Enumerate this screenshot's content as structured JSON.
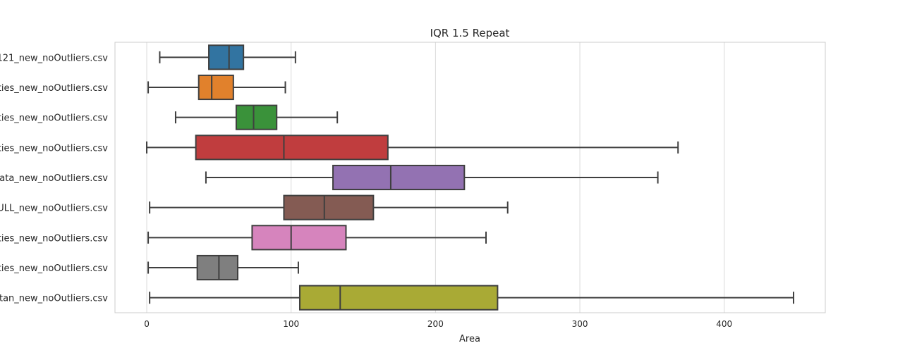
{
  "chart_data": {
    "type": "boxplot",
    "orientation": "horizontal",
    "title": "IQR 1.5 Repeat",
    "xlabel": "Area",
    "ylabel": "",
    "xlim": [
      -22,
      470
    ],
    "x_ticks": [
      0,
      100,
      200,
      300,
      400
    ],
    "grid": "vertical",
    "categories": [
      "121_new_noOutliers.csv",
      "rties_new_noOutliers.csv",
      "rties_new_noOutliers.csv",
      "rties_new_noOutliers.csv",
      "data_new_noOutliers.csv",
      "ULL_new_noOutliers.csv",
      "rties_new_noOutliers.csv",
      "rties_new_noOutliers.csv",
      "stan_new_noOutliers.csv"
    ],
    "boxes": [
      {
        "whisker_low": 9,
        "q1": 43,
        "median": 57,
        "q3": 67,
        "whisker_high": 103,
        "color": "#3274a1"
      },
      {
        "whisker_low": 1,
        "q1": 36,
        "median": 45,
        "q3": 60,
        "whisker_high": 96,
        "color": "#e1812c"
      },
      {
        "whisker_low": 20,
        "q1": 62,
        "median": 74,
        "q3": 90,
        "whisker_high": 132,
        "color": "#3a923a"
      },
      {
        "whisker_low": 0,
        "q1": 34,
        "median": 95,
        "q3": 167,
        "whisker_high": 368,
        "color": "#c03d3e"
      },
      {
        "whisker_low": 41,
        "q1": 129,
        "median": 169,
        "q3": 220,
        "whisker_high": 354,
        "color": "#9372b2"
      },
      {
        "whisker_low": 2,
        "q1": 95,
        "median": 123,
        "q3": 157,
        "whisker_high": 250,
        "color": "#845b53"
      },
      {
        "whisker_low": 1,
        "q1": 73,
        "median": 100,
        "q3": 138,
        "whisker_high": 235,
        "color": "#d684bd"
      },
      {
        "whisker_low": 1,
        "q1": 35,
        "median": 50,
        "q3": 63,
        "whisker_high": 105,
        "color": "#7f7f7f"
      },
      {
        "whisker_low": 2,
        "q1": 106,
        "median": 134,
        "q3": 243,
        "whisker_high": 448,
        "color": "#a9aa35"
      }
    ]
  }
}
